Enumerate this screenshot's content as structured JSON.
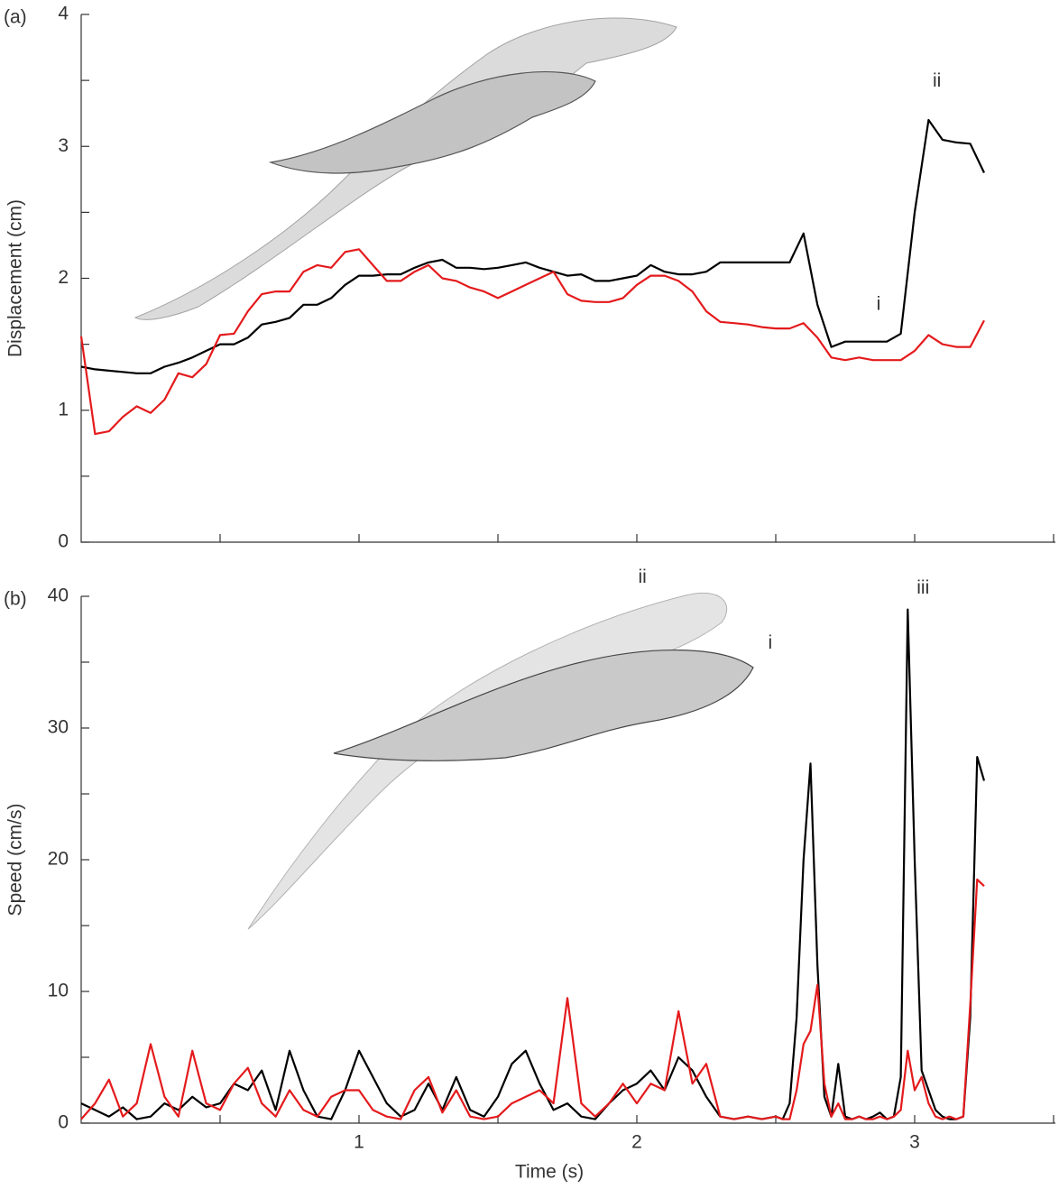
{
  "chart_data": [
    {
      "type": "line",
      "panel_label": "(a)",
      "ylabel": "Displacement (cm)",
      "xlim": [
        0,
        3.5
      ],
      "ylim": [
        0,
        4
      ],
      "yticks": [
        0,
        1,
        2,
        3,
        4
      ],
      "ytick_marks": [
        0.5,
        1.5,
        2.5,
        3.5
      ],
      "xtick_marks": [
        0.5,
        1,
        1.5,
        2,
        2.5,
        3,
        3.5
      ],
      "x": [
        0,
        0.05,
        0.1,
        0.15,
        0.2,
        0.25,
        0.3,
        0.35,
        0.4,
        0.45,
        0.5,
        0.55,
        0.6,
        0.65,
        0.7,
        0.75,
        0.8,
        0.85,
        0.9,
        0.95,
        1,
        1.05,
        1.1,
        1.15,
        1.2,
        1.25,
        1.3,
        1.35,
        1.4,
        1.45,
        1.5,
        1.55,
        1.6,
        1.65,
        1.7,
        1.75,
        1.8,
        1.85,
        1.9,
        1.95,
        2,
        2.05,
        2.1,
        2.15,
        2.2,
        2.25,
        2.3,
        2.35,
        2.4,
        2.45,
        2.5,
        2.55,
        2.6,
        2.65,
        2.7,
        2.75,
        2.8,
        2.85,
        2.9,
        2.95,
        3,
        3.05,
        3.1,
        3.15,
        3.2,
        3.25
      ],
      "series": [
        {
          "color": "#000000",
          "values": [
            1.33,
            1.31,
            1.3,
            1.29,
            1.28,
            1.28,
            1.33,
            1.36,
            1.4,
            1.45,
            1.5,
            1.5,
            1.55,
            1.65,
            1.67,
            1.7,
            1.8,
            1.8,
            1.85,
            1.95,
            2.02,
            2.02,
            2.03,
            2.03,
            2.08,
            2.12,
            2.14,
            2.08,
            2.08,
            2.07,
            2.08,
            2.1,
            2.12,
            2.08,
            2.05,
            2.02,
            2.03,
            1.98,
            1.98,
            2.0,
            2.02,
            2.1,
            2.05,
            2.03,
            2.03,
            2.05,
            2.12,
            2.12,
            2.12,
            2.12,
            2.12,
            2.12,
            2.34,
            1.8,
            1.48,
            1.52,
            1.52,
            1.52,
            1.52,
            1.58,
            2.5,
            3.2,
            3.05,
            3.03,
            3.02,
            2.8
          ]
        },
        {
          "color": "#e41a1c",
          "values": [
            1.56,
            0.82,
            0.84,
            0.95,
            1.03,
            0.98,
            1.08,
            1.28,
            1.25,
            1.35,
            1.57,
            1.58,
            1.75,
            1.88,
            1.9,
            1.9,
            2.05,
            2.1,
            2.08,
            2.2,
            2.22,
            2.1,
            1.98,
            1.98,
            2.05,
            2.1,
            2.0,
            1.98,
            1.93,
            1.9,
            1.85,
            1.9,
            1.95,
            2.0,
            2.05,
            1.88,
            1.83,
            1.82,
            1.82,
            1.85,
            1.95,
            2.02,
            2.02,
            1.98,
            1.9,
            1.75,
            1.67,
            1.66,
            1.65,
            1.63,
            1.62,
            1.62,
            1.66,
            1.55,
            1.4,
            1.38,
            1.4,
            1.38,
            1.38,
            1.38,
            1.45,
            1.57,
            1.5,
            1.48,
            1.48,
            1.68
          ]
        }
      ],
      "annotations": [
        {
          "text": "i",
          "x": 2.87,
          "y": 1.8
        },
        {
          "text": "ii",
          "x": 3.08,
          "y": 3.49
        }
      ]
    },
    {
      "type": "line",
      "panel_label": "(b)",
      "ylabel": "Speed (cm/s)",
      "xlabel": "Time (s)",
      "xlim": [
        0,
        3.5
      ],
      "ylim": [
        0,
        40
      ],
      "yticks": [
        0,
        10,
        20,
        30,
        40
      ],
      "ytick_marks": [
        5,
        15,
        25,
        35
      ],
      "xticks": [
        1,
        2,
        3
      ],
      "xtick_marks": [
        0.5,
        1.5,
        2.5,
        3.5
      ],
      "x": [
        0,
        0.05,
        0.1,
        0.15,
        0.2,
        0.25,
        0.3,
        0.35,
        0.4,
        0.45,
        0.5,
        0.55,
        0.6,
        0.65,
        0.7,
        0.75,
        0.8,
        0.85,
        0.9,
        0.95,
        1,
        1.05,
        1.1,
        1.15,
        1.2,
        1.25,
        1.3,
        1.35,
        1.4,
        1.45,
        1.5,
        1.55,
        1.6,
        1.65,
        1.7,
        1.75,
        1.8,
        1.85,
        1.9,
        1.95,
        2,
        2.05,
        2.1,
        2.15,
        2.2,
        2.25,
        2.3,
        2.35,
        2.4,
        2.45,
        2.5,
        2.525,
        2.55,
        2.575,
        2.6,
        2.625,
        2.65,
        2.675,
        2.7,
        2.725,
        2.75,
        2.775,
        2.8,
        2.825,
        2.85,
        2.875,
        2.9,
        2.925,
        2.95,
        2.975,
        3,
        3.025,
        3.05,
        3.075,
        3.1,
        3.125,
        3.15,
        3.175,
        3.2,
        3.225,
        3.25
      ],
      "series": [
        {
          "color": "#000000",
          "values": [
            1.5,
            1.0,
            0.5,
            1.2,
            0.3,
            0.5,
            1.5,
            1.0,
            2.0,
            1.2,
            1.5,
            3.0,
            2.5,
            4.0,
            1.0,
            5.5,
            2.5,
            0.5,
            0.3,
            2.5,
            5.5,
            3.5,
            1.5,
            0.5,
            1.0,
            3.0,
            1.0,
            3.5,
            1.0,
            0.5,
            2.0,
            4.5,
            5.5,
            3.0,
            1.0,
            1.5,
            0.5,
            0.3,
            1.5,
            2.5,
            3.0,
            4.0,
            2.5,
            5.0,
            4.0,
            2.0,
            0.5,
            0.3,
            0.5,
            0.3,
            0.5,
            0.3,
            1.5,
            8.0,
            20,
            27.3,
            12,
            2.0,
            0.5,
            4.5,
            0.5,
            0.3,
            0.5,
            0.3,
            0.5,
            0.8,
            0.3,
            0.5,
            3.5,
            39,
            20,
            4.0,
            2.5,
            1.0,
            0.5,
            0.3,
            0.3,
            0.5,
            8.0,
            27.8,
            26
          ]
        },
        {
          "color": "#e41a1c",
          "values": [
            0.3,
            1.5,
            3.3,
            0.5,
            1.5,
            6.0,
            2.0,
            0.5,
            5.5,
            1.5,
            1.0,
            3.0,
            4.2,
            1.5,
            0.5,
            2.5,
            1.0,
            0.5,
            2.0,
            2.5,
            2.5,
            1.0,
            0.5,
            0.3,
            2.5,
            3.5,
            0.8,
            2.5,
            0.5,
            0.3,
            0.5,
            1.5,
            2.0,
            2.5,
            1.5,
            9.5,
            1.5,
            0.5,
            1.5,
            3.0,
            1.5,
            3.0,
            2.5,
            8.5,
            3.0,
            4.5,
            0.5,
            0.3,
            0.5,
            0.3,
            0.5,
            0.3,
            0.3,
            2.5,
            6.0,
            7.0,
            10.5,
            3.0,
            0.5,
            1.5,
            0.3,
            0.3,
            0.5,
            0.3,
            0.3,
            0.5,
            0.3,
            0.5,
            1.0,
            5.5,
            2.5,
            3.5,
            1.5,
            0.5,
            0.3,
            0.5,
            0.3,
            0.5,
            9.0,
            18.5,
            18
          ]
        }
      ],
      "annotations": [
        {
          "text": "ii",
          "x": 2.02,
          "y": 41.4
        },
        {
          "text": "i",
          "x": 2.48,
          "y": 36.4
        },
        {
          "text": "iii",
          "x": 3.03,
          "y": 40.6
        }
      ]
    }
  ]
}
